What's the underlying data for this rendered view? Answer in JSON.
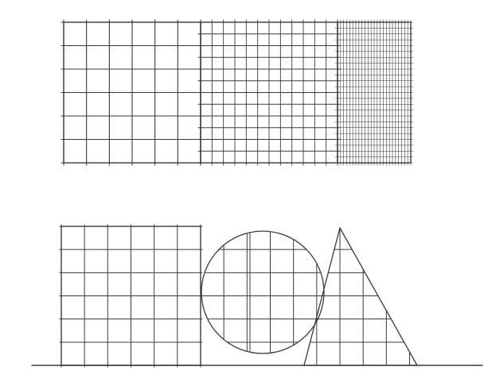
{
  "ink_color": "#3a3a3a",
  "paper_color": "#ffffff",
  "figure_top": {
    "description_free": true,
    "panels": [
      {
        "name": "coarse-grid",
        "columns": 6,
        "rows": 6
      },
      {
        "name": "medium-grid",
        "columns": 12,
        "rows": 12
      },
      {
        "name": "fine-grid",
        "columns": 24,
        "rows": 24
      }
    ]
  },
  "figure_bottom": {
    "shapes": [
      "square",
      "circle",
      "triangle"
    ],
    "grid_columns": 16,
    "grid_rows": 6
  }
}
